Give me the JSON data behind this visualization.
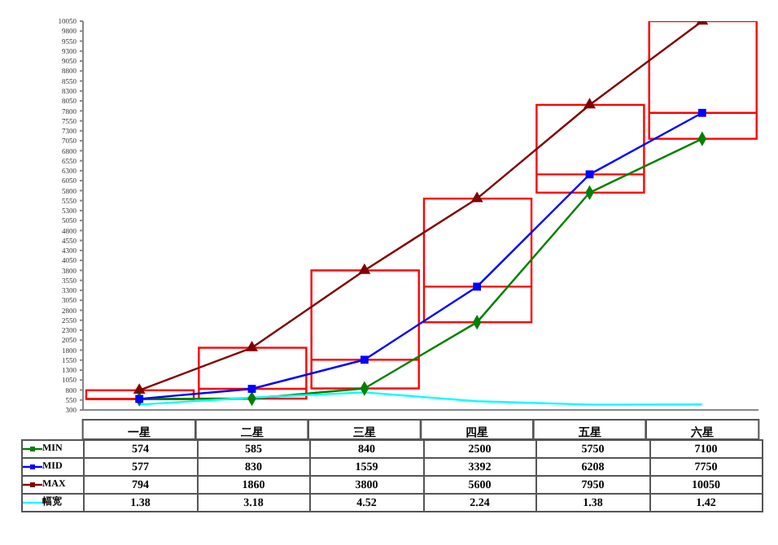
{
  "chart_data": {
    "type": "line",
    "categories": [
      "一星",
      "二星",
      "三星",
      "四星",
      "五星",
      "六星"
    ],
    "series": [
      {
        "type": "box",
        "color": "#ff0000",
        "boxes": [
          {
            "low": 574,
            "q1": 574,
            "median": 577,
            "q3": 794,
            "high": 794
          },
          {
            "low": 585,
            "q1": 585,
            "median": 830,
            "q3": 1860,
            "high": 1860
          },
          {
            "low": 840,
            "q1": 840,
            "median": 1559,
            "q3": 3800,
            "high": 3800
          },
          {
            "low": 2500,
            "q1": 2500,
            "median": 3392,
            "q3": 5600,
            "high": 5600
          },
          {
            "low": 5750,
            "q1": 5750,
            "median": 6208,
            "q3": 7950,
            "high": 7950
          },
          {
            "low": 7100,
            "q1": 7100,
            "median": 7750,
            "q3": 10050,
            "high": 10050
          }
        ]
      },
      {
        "name": "MIN",
        "color": "#008000",
        "marker": "diamond",
        "values": [
          574,
          585,
          840,
          2500,
          5750,
          7100
        ]
      },
      {
        "name": "MID",
        "color": "#0000ff",
        "marker": "square",
        "values": [
          577,
          830,
          1559,
          3392,
          6208,
          7750
        ]
      },
      {
        "name": "MAX",
        "color": "#800000",
        "marker": "triangle",
        "values": [
          794,
          1860,
          3800,
          5600,
          7950,
          10050
        ]
      },
      {
        "name": "幅宽",
        "color": "#00ffff",
        "marker": "none",
        "axis": "y2",
        "values": [
          1.38,
          3.18,
          4.52,
          2.24,
          1.38,
          1.42
        ]
      }
    ],
    "ylim": [
      300,
      10050
    ],
    "yticks": [
      300,
      550,
      800,
      1050,
      1300,
      1550,
      1800,
      2050,
      2300,
      2550,
      2800,
      3050,
      3300,
      3550,
      3800,
      4050,
      4300,
      4550,
      4800,
      5050,
      5300,
      5550,
      5800,
      6050,
      6300,
      6550,
      6800,
      7050,
      7300,
      7550,
      7800,
      8050,
      8300,
      8550,
      8800,
      9050,
      9300,
      9550,
      9800,
      10050
    ],
    "y2lim": [
      0,
      100
    ],
    "data_labels": true,
    "legend": "bottom"
  }
}
